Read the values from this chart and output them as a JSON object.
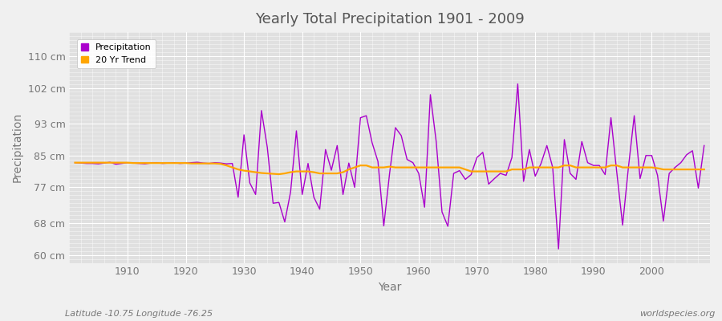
{
  "title": "Yearly Total Precipitation 1901 - 2009",
  "ylabel": "Precipitation",
  "xlabel": "Year",
  "subtitle_left": "Latitude -10.75 Longitude -76.25",
  "subtitle_right": "worldspecies.org",
  "start_year": 1901,
  "end_year": 2009,
  "ylim": [
    58,
    116
  ],
  "yticks": [
    60,
    68,
    77,
    85,
    93,
    102,
    110
  ],
  "ytick_labels": [
    "60 cm",
    "68 cm",
    "77 cm",
    "85 cm",
    "93 cm",
    "102 cm",
    "110 cm"
  ],
  "xlim_start": 1901,
  "xlim_end": 2009,
  "xticks": [
    1910,
    1920,
    1930,
    1940,
    1950,
    1960,
    1970,
    1980,
    1990,
    2000
  ],
  "precipitation_color": "#AA00CC",
  "trend_color": "#FFA500",
  "fig_bg_color": "#F0F0F0",
  "plot_bg_color": "#E0E0E0",
  "grid_color": "#FFFFFF",
  "title_color": "#555555",
  "label_color": "#777777",
  "precipitation": [
    83.2,
    83.1,
    83.0,
    83.0,
    82.9,
    83.1,
    83.3,
    82.8,
    83.0,
    83.2,
    83.1,
    83.0,
    82.9,
    83.1,
    83.2,
    83.0,
    83.1,
    83.2,
    83.0,
    83.1,
    83.2,
    83.3,
    83.1,
    83.0,
    83.2,
    83.1,
    82.9,
    83.0,
    74.5,
    90.2,
    78.1,
    75.2,
    96.3,
    87.1,
    73.0,
    73.2,
    68.3,
    75.8,
    91.2,
    75.2,
    83.0,
    74.5,
    71.5,
    86.5,
    81.3,
    87.5,
    75.2,
    83.1,
    77.0,
    94.5,
    95.0,
    88.2,
    83.5,
    67.3,
    80.5,
    92.0,
    90.0,
    84.0,
    83.2,
    80.5,
    72.0,
    100.3,
    88.5,
    70.8,
    67.2,
    80.5,
    81.2,
    79.0,
    80.2,
    84.5,
    85.8,
    77.8,
    79.2,
    80.5,
    80.0,
    84.5,
    103.0,
    78.5,
    86.5,
    79.8,
    83.0,
    87.5,
    82.0,
    61.5,
    89.0,
    80.5,
    79.0,
    88.5,
    83.2,
    82.5,
    82.5,
    80.2,
    94.5,
    80.8,
    67.5,
    82.0,
    95.0,
    79.2,
    85.0,
    85.0,
    80.0,
    68.5,
    80.5,
    82.0,
    83.2,
    85.2,
    86.2,
    76.8,
    87.5
  ],
  "trend_20yr": [
    83.2,
    83.2,
    83.2,
    83.2,
    83.2,
    83.2,
    83.2,
    83.2,
    83.2,
    83.2,
    83.1,
    83.1,
    83.1,
    83.1,
    83.1,
    83.1,
    83.1,
    83.1,
    83.1,
    83.1,
    83.0,
    83.0,
    83.0,
    83.0,
    83.0,
    82.9,
    82.5,
    82.0,
    81.5,
    81.2,
    81.0,
    80.8,
    80.6,
    80.5,
    80.4,
    80.3,
    80.5,
    80.8,
    81.0,
    81.0,
    81.0,
    80.8,
    80.5,
    80.5,
    80.5,
    80.5,
    80.8,
    81.5,
    82.0,
    82.5,
    82.5,
    82.0,
    82.0,
    82.0,
    82.2,
    82.0,
    82.0,
    82.0,
    82.0,
    82.0,
    82.0,
    82.0,
    82.0,
    82.0,
    82.0,
    82.0,
    82.0,
    81.5,
    81.0,
    81.0,
    81.0,
    81.0,
    81.0,
    81.0,
    81.0,
    81.5,
    81.5,
    81.5,
    82.0,
    82.0,
    82.0,
    82.0,
    82.0,
    82.0,
    82.5,
    82.5,
    82.0,
    82.0,
    82.0,
    82.0,
    82.0,
    82.0,
    82.5,
    82.5,
    82.0,
    82.0,
    82.0,
    82.0,
    82.0,
    82.0,
    81.8,
    81.5,
    81.5,
    81.5,
    81.5,
    81.5,
    81.5,
    81.5,
    81.5
  ],
  "legend_items": [
    {
      "label": "Precipitation",
      "color": "#AA00CC"
    },
    {
      "label": "20 Yr Trend",
      "color": "#FFA500"
    }
  ]
}
